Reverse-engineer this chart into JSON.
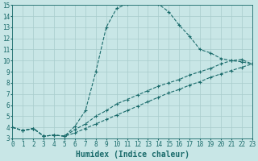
{
  "bg_color": "#c8e6e6",
  "line_color": "#1a6b6b",
  "grid_color": "#a8cccc",
  "xlabel": "Humidex (Indice chaleur)",
  "xlim": [
    0,
    23
  ],
  "ylim": [
    3,
    15
  ],
  "xticks": [
    0,
    1,
    2,
    3,
    4,
    5,
    6,
    7,
    8,
    9,
    10,
    11,
    12,
    13,
    14,
    15,
    16,
    17,
    18,
    19,
    20,
    21,
    22,
    23
  ],
  "yticks": [
    3,
    4,
    5,
    6,
    7,
    8,
    9,
    10,
    11,
    12,
    13,
    14,
    15
  ],
  "curve1_x": [
    0,
    1,
    2,
    3,
    4,
    5,
    6,
    7,
    8,
    9,
    10,
    11,
    12,
    13,
    14,
    15,
    16,
    17,
    18,
    19,
    20,
    21,
    22,
    23
  ],
  "curve1_y": [
    4.0,
    3.7,
    3.9,
    3.2,
    3.3,
    3.2,
    4.1,
    5.5,
    9.0,
    13.0,
    14.7,
    15.1,
    15.3,
    15.2,
    15.1,
    14.4,
    13.2,
    12.2,
    11.0,
    10.7,
    10.2,
    10.0,
    9.9,
    9.7
  ],
  "curve2_x": [
    0,
    1,
    2,
    3,
    4,
    5,
    6,
    7,
    8,
    9,
    10,
    11,
    12,
    13,
    14,
    15,
    16,
    17,
    18,
    19,
    20,
    21,
    22,
    23
  ],
  "curve2_y": [
    4.0,
    3.7,
    3.9,
    3.2,
    3.3,
    3.2,
    3.8,
    4.3,
    5.0,
    5.5,
    6.1,
    6.5,
    6.9,
    7.3,
    7.7,
    8.0,
    8.3,
    8.7,
    9.0,
    9.3,
    9.7,
    10.0,
    10.1,
    9.7
  ],
  "curve3_x": [
    0,
    1,
    2,
    3,
    4,
    5,
    6,
    7,
    8,
    9,
    10,
    11,
    12,
    13,
    14,
    15,
    16,
    17,
    18,
    19,
    20,
    21,
    22,
    23
  ],
  "curve3_y": [
    4.0,
    3.7,
    3.9,
    3.2,
    3.3,
    3.2,
    3.5,
    3.9,
    4.3,
    4.7,
    5.1,
    5.5,
    5.9,
    6.3,
    6.7,
    7.1,
    7.4,
    7.8,
    8.1,
    8.5,
    8.8,
    9.1,
    9.4,
    9.7
  ],
  "tick_fontsize": 5.5,
  "label_fontsize": 7.0
}
